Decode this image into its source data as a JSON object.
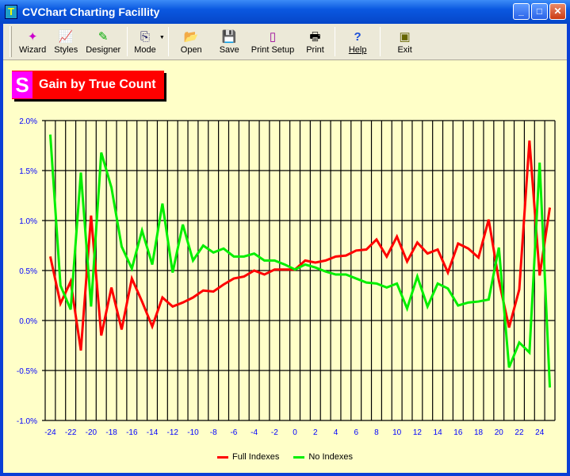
{
  "window": {
    "title": "CVChart Charting Facillity"
  },
  "toolbar": [
    {
      "label": "Wizard",
      "icon": "wand-icon"
    },
    {
      "label": "Styles",
      "icon": "chart-styles-icon"
    },
    {
      "label": "Designer",
      "icon": "pen-icon"
    },
    {
      "label": "Mode",
      "icon": "copy-icon"
    },
    {
      "label": "Open",
      "icon": "folder-open-icon"
    },
    {
      "label": "Save",
      "icon": "floppy-icon"
    },
    {
      "label": "Print Setup",
      "icon": "page-setup-icon"
    },
    {
      "label": "Print",
      "icon": "printer-icon"
    },
    {
      "label": "Help",
      "icon": "help-icon"
    },
    {
      "label": "Exit",
      "icon": "exit-icon"
    }
  ],
  "chart_data": {
    "type": "line",
    "title": "Gain by True Count",
    "x": [
      -24,
      -23,
      -22,
      -21,
      -20,
      -19,
      -18,
      -17,
      -16,
      -15,
      -14,
      -13,
      -12,
      -11,
      -10,
      -9,
      -8,
      -7,
      -6,
      -5,
      -4,
      -3,
      -2,
      -1,
      0,
      1,
      2,
      3,
      4,
      5,
      6,
      7,
      8,
      9,
      10,
      11,
      12,
      13,
      14,
      15,
      16,
      17,
      18,
      19,
      20,
      21,
      22,
      23,
      24,
      25
    ],
    "xticks": [
      "-24",
      "-22",
      "-20",
      "-18",
      "-16",
      "-14",
      "-12",
      "-10",
      "-8",
      "-6",
      "-4",
      "-2",
      "0",
      "2",
      "4",
      "6",
      "8",
      "10",
      "12",
      "14",
      "16",
      "18",
      "20",
      "22",
      "24"
    ],
    "yticks": [
      "2.0%",
      "1.5%",
      "1.0%",
      "0.5%",
      "0.0%",
      "-0.5%",
      "-1.0%"
    ],
    "ylim": [
      -1.0,
      2.0
    ],
    "xlim": [
      -24.5,
      25.5
    ],
    "grid": true,
    "legend": "bottom",
    "series": [
      {
        "name": "Full Indexes",
        "color": "#ff0000",
        "values": [
          0.64,
          0.17,
          0.39,
          -0.3,
          1.05,
          -0.15,
          0.33,
          -0.09,
          0.42,
          0.19,
          -0.06,
          0.23,
          0.14,
          0.18,
          0.23,
          0.3,
          0.29,
          0.36,
          0.42,
          0.44,
          0.5,
          0.46,
          0.51,
          0.51,
          0.51,
          0.6,
          0.58,
          0.6,
          0.64,
          0.65,
          0.7,
          0.71,
          0.81,
          0.64,
          0.84,
          0.59,
          0.78,
          0.67,
          0.71,
          0.48,
          0.77,
          0.72,
          0.63,
          1.01,
          0.4,
          -0.07,
          0.31,
          1.8,
          0.45,
          1.13
        ]
      },
      {
        "name": "No Indexes",
        "color": "#00ee00",
        "values": [
          1.86,
          0.35,
          0.11,
          1.48,
          0.14,
          1.68,
          1.33,
          0.74,
          0.52,
          0.9,
          0.56,
          1.17,
          0.48,
          0.96,
          0.6,
          0.75,
          0.68,
          0.72,
          0.64,
          0.64,
          0.67,
          0.6,
          0.6,
          0.56,
          0.51,
          0.56,
          0.53,
          0.49,
          0.46,
          0.46,
          0.42,
          0.38,
          0.37,
          0.33,
          0.37,
          0.12,
          0.44,
          0.14,
          0.37,
          0.32,
          0.15,
          0.18,
          0.19,
          0.21,
          0.73,
          -0.47,
          -0.22,
          -0.32,
          1.58,
          -0.67
        ]
      }
    ]
  }
}
